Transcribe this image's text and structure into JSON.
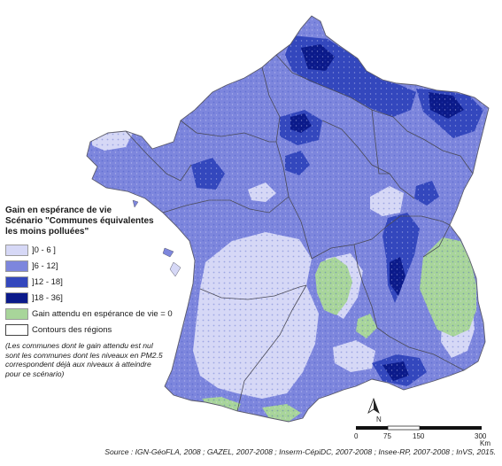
{
  "legend": {
    "title": "Gain en espérance de vie\nScénario \"Communes équivalentes\nles moins polluées\"",
    "classes": [
      {
        "label": "]0 - 6 ]",
        "color": "#d6d8f6"
      },
      {
        "label": "]6 - 12]",
        "color": "#7d86dd"
      },
      {
        "label": "]12 - 18]",
        "color": "#3347bd"
      },
      {
        "label": "]18 - 36]",
        "color": "#0b1a8a"
      },
      {
        "label": "Gain attendu en espérance de vie = 0",
        "color": "#a8d59a"
      },
      {
        "label": "Contours des régions",
        "color": "#ffffff"
      }
    ],
    "note": "(Les communes dont le gain attendu est nul\nsont les communes dont les niveaux en PM2.5\ncorrespondent déjà aux niveaux à atteindre\npour ce scénario)"
  },
  "scale_bar": {
    "north_label": "N",
    "ticks": [
      "0",
      "75",
      "150",
      "300"
    ],
    "unit": "Km"
  },
  "source": "Source : IGN-GéoFLA, 2008 ; GAZEL, 2007-2008 ; Inserm-CépiDC, 2007-2008 ; Insee-RP, 2007-2008 ; InVS, 2015."
}
